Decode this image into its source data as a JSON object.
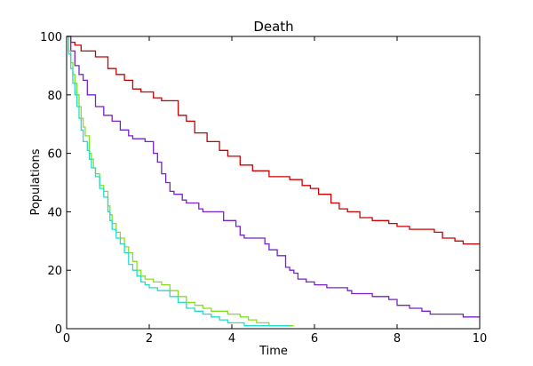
{
  "chart_data": {
    "type": "line",
    "step": true,
    "title": "Death",
    "xlabel": "Time",
    "ylabel": "Populations",
    "xlim": [
      0,
      10
    ],
    "ylim": [
      0,
      100
    ],
    "xticks": [
      0,
      2,
      4,
      6,
      8,
      10
    ],
    "yticks": [
      0,
      20,
      40,
      60,
      80,
      100
    ],
    "grid": false,
    "legend": "none",
    "series": [
      {
        "color": "#cc0000",
        "points": [
          [
            0,
            100
          ],
          [
            0.1,
            98
          ],
          [
            0.2,
            97
          ],
          [
            0.35,
            95
          ],
          [
            0.7,
            93
          ],
          [
            1.0,
            89
          ],
          [
            1.2,
            87
          ],
          [
            1.4,
            85
          ],
          [
            1.6,
            82
          ],
          [
            1.8,
            81
          ],
          [
            2.1,
            79
          ],
          [
            2.3,
            78
          ],
          [
            2.7,
            73
          ],
          [
            2.9,
            71
          ],
          [
            3.1,
            67
          ],
          [
            3.4,
            64
          ],
          [
            3.7,
            61
          ],
          [
            3.9,
            59
          ],
          [
            4.2,
            56
          ],
          [
            4.5,
            54
          ],
          [
            4.9,
            52
          ],
          [
            5.4,
            51
          ],
          [
            5.7,
            49
          ],
          [
            5.9,
            48
          ],
          [
            6.1,
            46
          ],
          [
            6.4,
            43
          ],
          [
            6.6,
            41
          ],
          [
            6.8,
            40
          ],
          [
            7.1,
            38
          ],
          [
            7.4,
            37
          ],
          [
            7.8,
            36
          ],
          [
            8.0,
            35
          ],
          [
            8.3,
            34
          ],
          [
            8.9,
            33
          ],
          [
            9.1,
            31
          ],
          [
            9.4,
            30
          ],
          [
            9.6,
            29
          ],
          [
            10.0,
            29
          ]
        ]
      },
      {
        "color": "#7722cc",
        "points": [
          [
            0,
            100
          ],
          [
            0.1,
            95
          ],
          [
            0.2,
            90
          ],
          [
            0.3,
            87
          ],
          [
            0.4,
            85
          ],
          [
            0.5,
            80
          ],
          [
            0.7,
            76
          ],
          [
            0.9,
            73
          ],
          [
            1.1,
            71
          ],
          [
            1.3,
            68
          ],
          [
            1.5,
            66
          ],
          [
            1.6,
            65
          ],
          [
            1.9,
            64
          ],
          [
            2.1,
            60
          ],
          [
            2.2,
            57
          ],
          [
            2.3,
            53
          ],
          [
            2.4,
            50
          ],
          [
            2.5,
            47
          ],
          [
            2.6,
            46
          ],
          [
            2.8,
            44
          ],
          [
            2.9,
            43
          ],
          [
            3.2,
            41
          ],
          [
            3.3,
            40
          ],
          [
            3.8,
            37
          ],
          [
            4.1,
            35
          ],
          [
            4.2,
            32
          ],
          [
            4.3,
            31
          ],
          [
            4.8,
            29
          ],
          [
            4.9,
            27
          ],
          [
            5.1,
            25
          ],
          [
            5.3,
            21
          ],
          [
            5.4,
            20
          ],
          [
            5.5,
            19
          ],
          [
            5.6,
            17
          ],
          [
            5.8,
            16
          ],
          [
            6.0,
            15
          ],
          [
            6.3,
            14
          ],
          [
            6.8,
            13
          ],
          [
            6.9,
            12
          ],
          [
            7.4,
            11
          ],
          [
            7.8,
            10
          ],
          [
            8.0,
            8
          ],
          [
            8.3,
            7
          ],
          [
            8.6,
            6
          ],
          [
            8.8,
            5
          ],
          [
            9.0,
            5
          ],
          [
            9.6,
            4
          ],
          [
            10.0,
            4
          ]
        ]
      },
      {
        "color": "#88dd22",
        "points": [
          [
            0,
            100
          ],
          [
            0.05,
            95
          ],
          [
            0.1,
            91
          ],
          [
            0.15,
            87
          ],
          [
            0.2,
            84
          ],
          [
            0.25,
            80
          ],
          [
            0.3,
            76
          ],
          [
            0.35,
            72
          ],
          [
            0.4,
            69
          ],
          [
            0.45,
            66
          ],
          [
            0.55,
            60
          ],
          [
            0.6,
            58
          ],
          [
            0.65,
            55
          ],
          [
            0.7,
            53
          ],
          [
            0.8,
            49
          ],
          [
            0.9,
            47
          ],
          [
            1.0,
            42
          ],
          [
            1.05,
            39
          ],
          [
            1.1,
            36
          ],
          [
            1.2,
            33
          ],
          [
            1.3,
            31
          ],
          [
            1.4,
            28
          ],
          [
            1.5,
            26
          ],
          [
            1.6,
            23
          ],
          [
            1.7,
            20
          ],
          [
            1.8,
            18
          ],
          [
            1.9,
            17
          ],
          [
            2.1,
            16
          ],
          [
            2.3,
            15
          ],
          [
            2.5,
            13
          ],
          [
            2.7,
            11
          ],
          [
            2.9,
            9
          ],
          [
            3.1,
            8
          ],
          [
            3.3,
            7
          ],
          [
            3.5,
            6
          ],
          [
            3.9,
            5
          ],
          [
            4.2,
            4
          ],
          [
            4.4,
            3
          ],
          [
            4.6,
            2
          ],
          [
            4.9,
            1
          ],
          [
            5.5,
            1
          ]
        ]
      },
      {
        "color": "#22ddcc",
        "points": [
          [
            0,
            100
          ],
          [
            0.05,
            94
          ],
          [
            0.1,
            89
          ],
          [
            0.15,
            84
          ],
          [
            0.2,
            80
          ],
          [
            0.25,
            76
          ],
          [
            0.3,
            72
          ],
          [
            0.35,
            68
          ],
          [
            0.4,
            64
          ],
          [
            0.5,
            61
          ],
          [
            0.55,
            58
          ],
          [
            0.6,
            55
          ],
          [
            0.7,
            52
          ],
          [
            0.8,
            48
          ],
          [
            0.9,
            45
          ],
          [
            1.0,
            40
          ],
          [
            1.05,
            37
          ],
          [
            1.1,
            34
          ],
          [
            1.2,
            31
          ],
          [
            1.3,
            29
          ],
          [
            1.4,
            26
          ],
          [
            1.5,
            22
          ],
          [
            1.6,
            20
          ],
          [
            1.7,
            18
          ],
          [
            1.8,
            16
          ],
          [
            1.9,
            15
          ],
          [
            2.0,
            14
          ],
          [
            2.2,
            13
          ],
          [
            2.5,
            11
          ],
          [
            2.7,
            9
          ],
          [
            2.9,
            7
          ],
          [
            3.1,
            6
          ],
          [
            3.3,
            5
          ],
          [
            3.5,
            4
          ],
          [
            3.7,
            3
          ],
          [
            3.9,
            2
          ],
          [
            4.3,
            1
          ],
          [
            5.4,
            1
          ]
        ]
      }
    ]
  }
}
